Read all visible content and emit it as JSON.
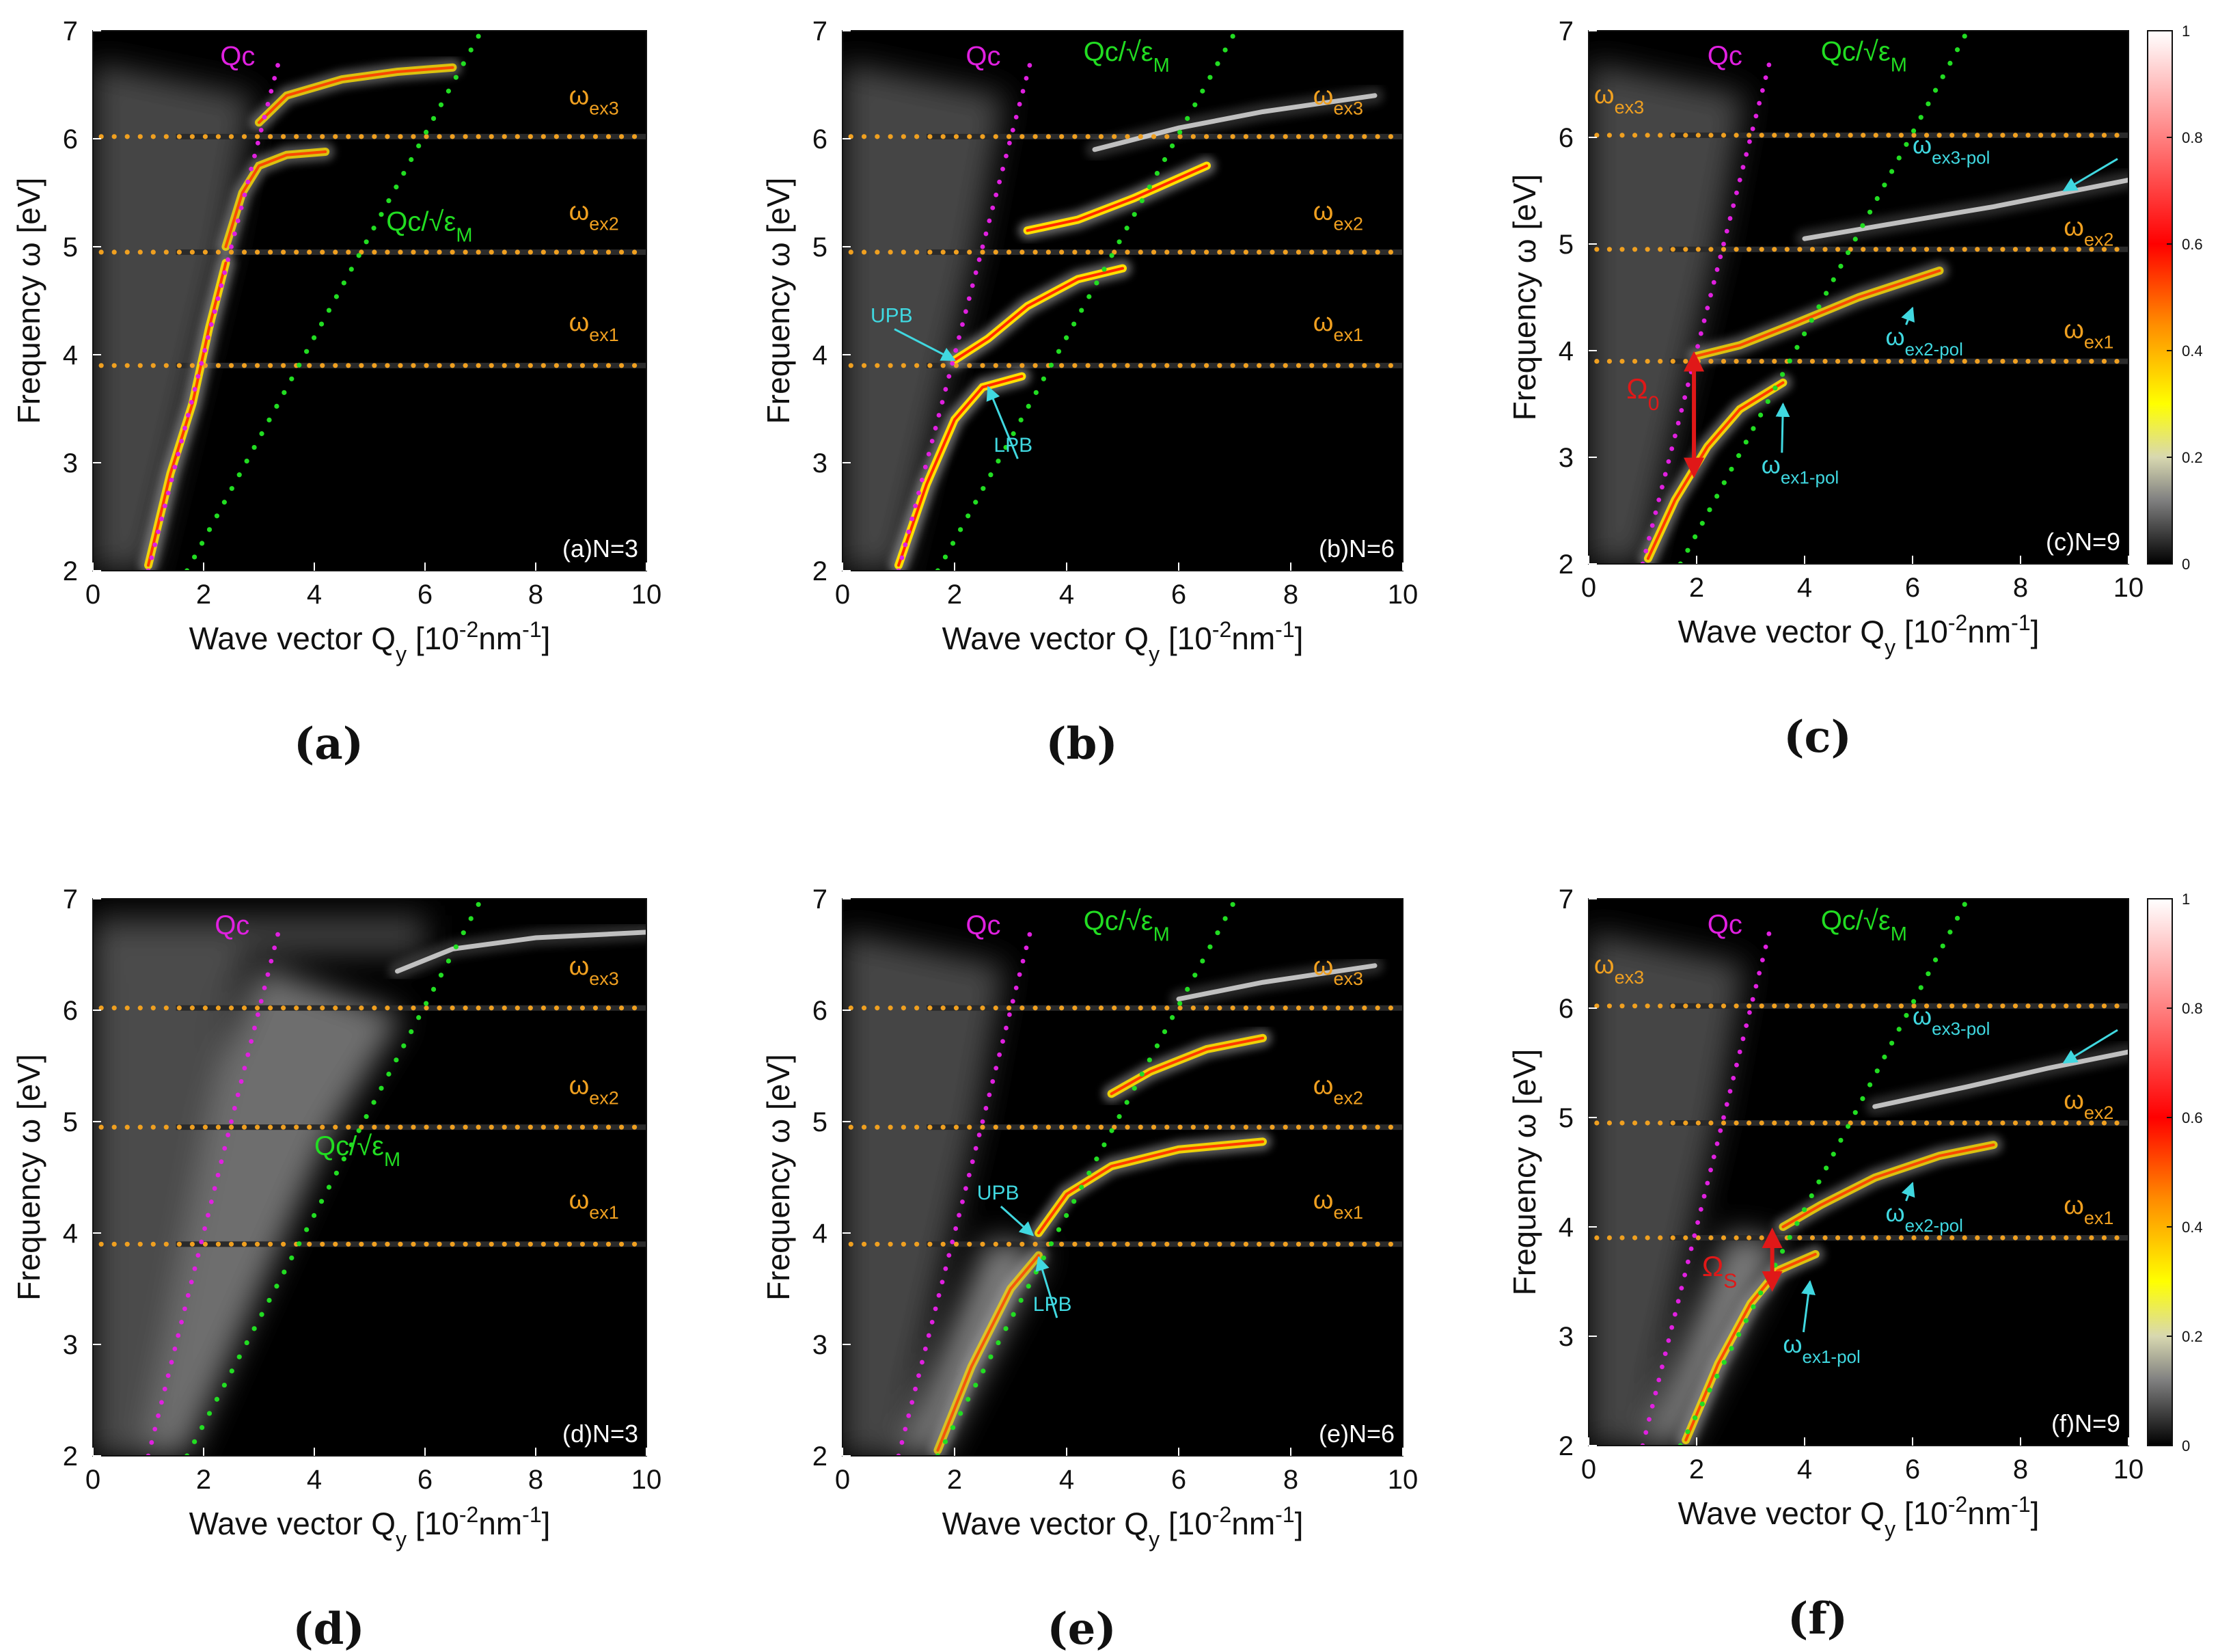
{
  "figure": {
    "colors": {
      "orange": "#f0a020",
      "magenta": "#e020e0",
      "green": "#22dd22",
      "cyan": "#40d8e0",
      "red": "#e01818",
      "background": "#000000"
    }
  },
  "chart_data": [
    {
      "type": "heatmap",
      "id": "a",
      "caption": "(a)",
      "corner_label": "(a)N=3",
      "xlabel": "Wave vector Q",
      "xsub": "y",
      "xunit": " [10",
      "xexp": "-2",
      "xunit2": "nm",
      "xexp2": "-1",
      "xclose": "]",
      "ylabel": "Frequency ω [eV]",
      "xlim": [
        0,
        10
      ],
      "ylim": [
        2,
        7
      ],
      "xticks": [
        "0",
        "2",
        "4",
        "6",
        "8",
        "10"
      ],
      "yticks": [
        "2",
        "3",
        "4",
        "5",
        "6",
        "7"
      ],
      "exciton_levels": [
        3.9,
        4.95,
        6.02
      ],
      "curves": {
        "qc": "Qc",
        "qcm": "Qc/√ε",
        "qcm_sub": "M"
      },
      "ex_labels": [
        {
          "base": "ω",
          "sub": "ex1",
          "x": 8.6,
          "y": 4.22
        },
        {
          "base": "ω",
          "sub": "ex2",
          "x": 8.6,
          "y": 5.25
        },
        {
          "base": "ω",
          "sub": "ex3",
          "x": 8.6,
          "y": 6.32
        }
      ],
      "qc_label_pos": [
        2.3,
        6.68
      ],
      "qcm_label_pos": [
        5.3,
        5.15
      ],
      "style": "strong",
      "branches": [
        {
          "x": [
            1.0,
            1.4,
            1.8,
            2.1,
            2.4
          ],
          "y": [
            2.05,
            2.9,
            3.55,
            4.25,
            4.85
          ],
          "w": 0.9
        },
        {
          "x": [
            2.4,
            2.7,
            3.0,
            3.5,
            4.2
          ],
          "y": [
            5.0,
            5.5,
            5.75,
            5.85,
            5.88
          ],
          "w": 0.8
        },
        {
          "x": [
            3.0,
            3.5,
            4.5,
            5.5,
            6.5
          ],
          "y": [
            6.15,
            6.4,
            6.55,
            6.62,
            6.66
          ],
          "w": 0.8
        }
      ],
      "pointers": []
    },
    {
      "type": "heatmap",
      "id": "b",
      "caption": "(b)",
      "corner_label": "(b)N=6",
      "xlabel": "Wave vector Q",
      "xsub": "y",
      "xunit": " [10",
      "xexp": "-2",
      "xunit2": "nm",
      "xexp2": "-1",
      "xclose": "]",
      "ylabel": "Frequency ω [eV]",
      "xlim": [
        0,
        10
      ],
      "ylim": [
        2,
        7
      ],
      "xticks": [
        "0",
        "2",
        "4",
        "6",
        "8",
        "10"
      ],
      "yticks": [
        "2",
        "3",
        "4",
        "5",
        "6",
        "7"
      ],
      "exciton_levels": [
        3.9,
        4.95,
        6.02
      ],
      "curves": {
        "qc": "Qc",
        "qcm": "Qc/√ε",
        "qcm_sub": "M"
      },
      "ex_labels": [
        {
          "base": "ω",
          "sub": "ex1",
          "x": 8.4,
          "y": 4.22
        },
        {
          "base": "ω",
          "sub": "ex2",
          "x": 8.4,
          "y": 5.25
        },
        {
          "base": "ω",
          "sub": "ex3",
          "x": 8.4,
          "y": 6.32
        }
      ],
      "qc_label_pos": [
        2.2,
        6.68
      ],
      "qcm_label_pos": [
        4.3,
        6.72
      ],
      "style": "strong",
      "branches": [
        {
          "x": [
            1.0,
            1.5,
            2.0,
            2.5,
            3.2
          ],
          "y": [
            2.05,
            2.8,
            3.4,
            3.7,
            3.8
          ],
          "w": 1.0
        },
        {
          "x": [
            2.0,
            2.6,
            3.3,
            4.2,
            5.0
          ],
          "y": [
            3.95,
            4.15,
            4.45,
            4.7,
            4.8
          ],
          "w": 1.0
        },
        {
          "x": [
            3.3,
            4.2,
            5.2,
            6.5
          ],
          "y": [
            5.15,
            5.25,
            5.45,
            5.75
          ],
          "w": 1.0
        },
        {
          "x": [
            4.5,
            6.0,
            7.5,
            9.5
          ],
          "y": [
            5.9,
            6.1,
            6.25,
            6.4
          ],
          "w": 0.3
        }
      ],
      "pointers": [
        {
          "text": "UPB",
          "tx": 0.5,
          "ty": 4.3,
          "ax": 2.0,
          "ay": 3.95
        },
        {
          "text": "LPB",
          "tx": 2.7,
          "ty": 3.1,
          "ax": 2.6,
          "ay": 3.7
        }
      ]
    },
    {
      "type": "heatmap",
      "id": "c",
      "caption": "(c)",
      "corner_label": "(c)N=9",
      "xlabel": "Wave vector Q",
      "xsub": "y",
      "xunit": " [10",
      "xexp": "-2",
      "xunit2": "nm",
      "xexp2": "-1",
      "xclose": "]",
      "ylabel": "Frequency ω [eV]",
      "xlim": [
        0,
        10
      ],
      "ylim": [
        2,
        7
      ],
      "xticks": [
        "0",
        "2",
        "4",
        "6",
        "8",
        "10"
      ],
      "yticks": [
        "2",
        "3",
        "4",
        "5",
        "6",
        "7"
      ],
      "exciton_levels": [
        3.9,
        4.95,
        6.02
      ],
      "curves": {
        "qc": "Qc",
        "qcm": "Qc/√ε",
        "qcm_sub": "M"
      },
      "ex_labels": [
        {
          "base": "ω",
          "sub": "ex3",
          "x": 0.1,
          "y": 6.32
        },
        {
          "base": "ω",
          "sub": "ex2",
          "x": 8.8,
          "y": 5.08
        },
        {
          "base": "ω",
          "sub": "ex1",
          "x": 8.8,
          "y": 4.12
        }
      ],
      "pol_labels": [
        {
          "base": "ω",
          "sub": "ex3-pol",
          "x": 6.0,
          "y": 5.85,
          "ax": 8.8,
          "ay": 5.5
        },
        {
          "base": "ω",
          "sub": "ex2-pol",
          "x": 5.5,
          "y": 4.05,
          "ax": 6.0,
          "ay": 4.4
        },
        {
          "base": "ω",
          "sub": "ex1-pol",
          "x": 3.2,
          "y": 2.85,
          "ax": 3.6,
          "ay": 3.5
        }
      ],
      "qc_label_pos": [
        2.2,
        6.68
      ],
      "qcm_label_pos": [
        4.3,
        6.72
      ],
      "style": "medium",
      "colorbar": {
        "ticks": [
          "0",
          "0.2",
          "0.4",
          "0.6",
          "0.8",
          "1"
        ]
      },
      "rabi": {
        "label": "Ω",
        "sub": "0",
        "x": 1.95,
        "y0": 2.9,
        "y1": 3.9,
        "lx": 0.7,
        "ly": 3.55
      },
      "branches": [
        {
          "x": [
            1.1,
            1.6,
            2.2,
            2.8,
            3.6
          ],
          "y": [
            2.05,
            2.6,
            3.1,
            3.45,
            3.7
          ],
          "w": 0.9
        },
        {
          "x": [
            2.0,
            2.8,
            3.8,
            5.0,
            6.5
          ],
          "y": [
            3.95,
            4.05,
            4.25,
            4.5,
            4.75
          ],
          "w": 0.8
        },
        {
          "x": [
            4.0,
            5.5,
            7.5,
            10.0
          ],
          "y": [
            5.05,
            5.18,
            5.35,
            5.6
          ],
          "w": 0.25
        }
      ],
      "pointers": []
    },
    {
      "type": "heatmap",
      "id": "d",
      "caption": "(d)",
      "corner_label": "(d)N=3",
      "xlabel": "Wave vector Q",
      "xsub": "y",
      "xunit": " [10",
      "xexp": "-2",
      "xunit2": "nm",
      "xexp2": "-1",
      "xclose": "]",
      "ylabel": "Frequency ω [eV]",
      "xlim": [
        0,
        10
      ],
      "ylim": [
        2,
        7
      ],
      "xticks": [
        "0",
        "2",
        "4",
        "6",
        "8",
        "10"
      ],
      "yticks": [
        "2",
        "3",
        "4",
        "5",
        "6",
        "7"
      ],
      "exciton_levels": [
        3.9,
        4.95,
        6.02
      ],
      "curves": {
        "qc": "Qc",
        "qcm": "Qc/√ε",
        "qcm_sub": "M"
      },
      "ex_labels": [
        {
          "base": "ω",
          "sub": "ex1",
          "x": 8.6,
          "y": 4.22
        },
        {
          "base": "ω",
          "sub": "ex2",
          "x": 8.6,
          "y": 5.25
        },
        {
          "base": "ω",
          "sub": "ex3",
          "x": 8.6,
          "y": 6.32
        }
      ],
      "qc_label_pos": [
        2.2,
        6.68
      ],
      "qcm_label_pos": [
        4.0,
        4.7
      ],
      "style": "diffuse",
      "branches": [
        {
          "x": [
            5.5,
            6.5,
            8.0,
            10.0
          ],
          "y": [
            6.35,
            6.55,
            6.65,
            6.7
          ],
          "w": 0.2
        }
      ],
      "pointers": []
    },
    {
      "type": "heatmap",
      "id": "e",
      "caption": "(e)",
      "corner_label": "(e)N=6",
      "xlabel": "Wave vector Q",
      "xsub": "y",
      "xunit": " [10",
      "xexp": "-2",
      "xunit2": "nm",
      "xexp2": "-1",
      "xclose": "]",
      "ylabel": "Frequency ω [eV]",
      "xlim": [
        0,
        10
      ],
      "ylim": [
        2,
        7
      ],
      "xticks": [
        "0",
        "2",
        "4",
        "6",
        "8",
        "10"
      ],
      "yticks": [
        "2",
        "3",
        "4",
        "5",
        "6",
        "7"
      ],
      "exciton_levels": [
        3.9,
        4.95,
        6.02
      ],
      "curves": {
        "qc": "Qc",
        "qcm": "Qc/√ε",
        "qcm_sub": "M"
      },
      "ex_labels": [
        {
          "base": "ω",
          "sub": "ex1",
          "x": 8.4,
          "y": 4.22
        },
        {
          "base": "ω",
          "sub": "ex2",
          "x": 8.4,
          "y": 5.25
        },
        {
          "base": "ω",
          "sub": "ex3",
          "x": 8.4,
          "y": 6.32
        }
      ],
      "qc_label_pos": [
        2.2,
        6.68
      ],
      "qcm_label_pos": [
        4.3,
        6.72
      ],
      "style": "mixed",
      "branches": [
        {
          "x": [
            1.7,
            2.3,
            3.0,
            3.5
          ],
          "y": [
            2.05,
            2.8,
            3.5,
            3.8
          ],
          "w": 0.7
        },
        {
          "x": [
            3.5,
            4.0,
            4.8,
            6.0,
            7.5
          ],
          "y": [
            4.0,
            4.35,
            4.6,
            4.75,
            4.82
          ],
          "w": 0.9
        },
        {
          "x": [
            4.8,
            5.5,
            6.5,
            7.5
          ],
          "y": [
            5.25,
            5.45,
            5.65,
            5.75
          ],
          "w": 0.9
        },
        {
          "x": [
            6.0,
            7.5,
            9.5
          ],
          "y": [
            6.1,
            6.25,
            6.4
          ],
          "w": 0.25
        }
      ],
      "pointers": [
        {
          "text": "UPB",
          "tx": 2.4,
          "ty": 4.3,
          "ax": 3.4,
          "ay": 3.98
        },
        {
          "text": "LPB",
          "tx": 3.4,
          "ty": 3.3,
          "ax": 3.5,
          "ay": 3.78
        }
      ]
    },
    {
      "type": "heatmap",
      "id": "f",
      "caption": "(f)",
      "corner_label": "(f)N=9",
      "xlabel": "Wave vector Q",
      "xsub": "y",
      "xunit": " [10",
      "xexp": "-2",
      "xunit2": "nm",
      "xexp2": "-1",
      "xclose": "]",
      "ylabel": "Frequency ω [eV]",
      "xlim": [
        0,
        10
      ],
      "ylim": [
        2,
        7
      ],
      "xticks": [
        "0",
        "2",
        "4",
        "6",
        "8",
        "10"
      ],
      "yticks": [
        "2",
        "3",
        "4",
        "5",
        "6",
        "7"
      ],
      "exciton_levels": [
        3.9,
        4.95,
        6.02
      ],
      "curves": {
        "qc": "Qc",
        "qcm": "Qc/√ε",
        "qcm_sub": "M"
      },
      "ex_labels": [
        {
          "base": "ω",
          "sub": "ex3",
          "x": 0.1,
          "y": 6.32
        },
        {
          "base": "ω",
          "sub": "ex2",
          "x": 8.8,
          "y": 5.08
        },
        {
          "base": "ω",
          "sub": "ex1",
          "x": 8.8,
          "y": 4.12
        }
      ],
      "pol_labels": [
        {
          "base": "ω",
          "sub": "ex3-pol",
          "x": 6.0,
          "y": 5.85,
          "ax": 8.8,
          "ay": 5.5
        },
        {
          "base": "ω",
          "sub": "ex2-pol",
          "x": 5.5,
          "y": 4.05,
          "ax": 6.0,
          "ay": 4.4
        },
        {
          "base": "ω",
          "sub": "ex1-pol",
          "x": 3.6,
          "y": 2.85,
          "ax": 4.1,
          "ay": 3.5
        }
      ],
      "qc_label_pos": [
        2.2,
        6.68
      ],
      "qcm_label_pos": [
        4.3,
        6.72
      ],
      "style": "mixed",
      "colorbar": {
        "ticks": [
          "0",
          "0.2",
          "0.4",
          "0.6",
          "0.8",
          "1"
        ]
      },
      "rabi": {
        "label": "Ω",
        "sub": "S",
        "x": 3.4,
        "y0": 3.5,
        "y1": 3.9,
        "lx": 2.1,
        "ly": 3.55
      },
      "branches": [
        {
          "x": [
            1.8,
            2.4,
            3.0,
            3.5,
            4.2
          ],
          "y": [
            2.05,
            2.75,
            3.3,
            3.6,
            3.75
          ],
          "w": 0.8
        },
        {
          "x": [
            3.6,
            4.3,
            5.3,
            6.5,
            7.5
          ],
          "y": [
            4.0,
            4.2,
            4.45,
            4.65,
            4.75
          ],
          "w": 0.8
        },
        {
          "x": [
            5.3,
            7.0,
            8.5,
            10.0
          ],
          "y": [
            5.1,
            5.28,
            5.45,
            5.6
          ],
          "w": 0.25
        }
      ],
      "pointers": []
    }
  ]
}
